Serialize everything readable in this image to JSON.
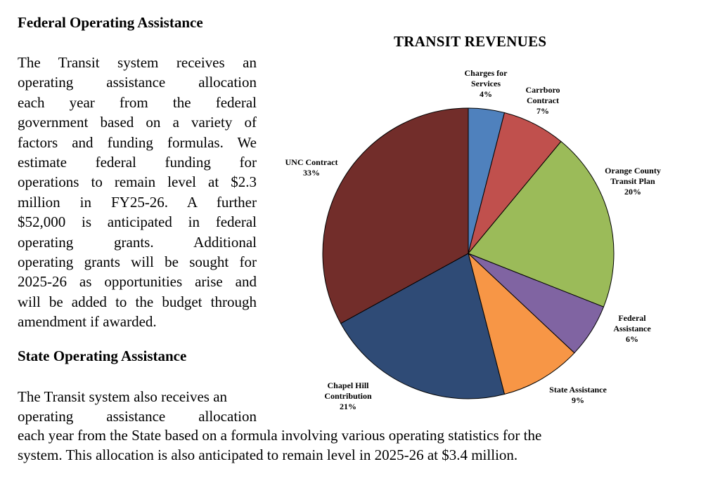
{
  "section1": {
    "heading": "Federal Operating Assistance",
    "lines": [
      "The Transit system receives an",
      "operating assistance allocation",
      "each year from the federal",
      "government based on a variety of",
      "factors and funding formulas. We",
      "estimate federal funding for",
      "operations to remain level at $2.3",
      "million in FY25-26.  A further",
      "$52,000 is anticipated in federal",
      "operating grants.  Additional",
      "operating grants will be sought for",
      "2025-26 as opportunities arise and",
      "will be added to the budget through",
      "amendment if awarded."
    ]
  },
  "section2": {
    "heading": "State Operating Assistance",
    "lines_narrow": [
      "The Transit system also receives an",
      "operating assistance allocation"
    ],
    "lines_wide": [
      "each year from the State based on a formula involving various operating statistics for the",
      "system. This allocation is also anticipated to remain level in 2025-26 at $3.4 million."
    ]
  },
  "chart_data": {
    "type": "pie",
    "title": "TRANSIT REVENUES",
    "start_angle_deg": 0,
    "direction": "clockwise",
    "slices": [
      {
        "label": [
          "Charges for",
          "Services"
        ],
        "value": 4,
        "pct": "4%",
        "color": "#4f81bd"
      },
      {
        "label": [
          "Carrboro",
          "Contract"
        ],
        "value": 7,
        "pct": "7%",
        "color": "#c0504d"
      },
      {
        "label": [
          "Orange County",
          "Transit Plan"
        ],
        "value": 20,
        "pct": "20%",
        "color": "#9bbb59"
      },
      {
        "label": [
          "Federal",
          "Assistance"
        ],
        "value": 6,
        "pct": "6%",
        "color": "#8064a2"
      },
      {
        "label": [
          "State Assistance"
        ],
        "value": 9,
        "pct": "9%",
        "color": "#f79646"
      },
      {
        "label": [
          "Chapel Hill",
          "Contribution"
        ],
        "value": 21,
        "pct": "21%",
        "color": "#2f4b76"
      },
      {
        "label": [
          "UNC Contract"
        ],
        "value": 33,
        "pct": "33%",
        "color": "#722d2a"
      }
    ]
  }
}
